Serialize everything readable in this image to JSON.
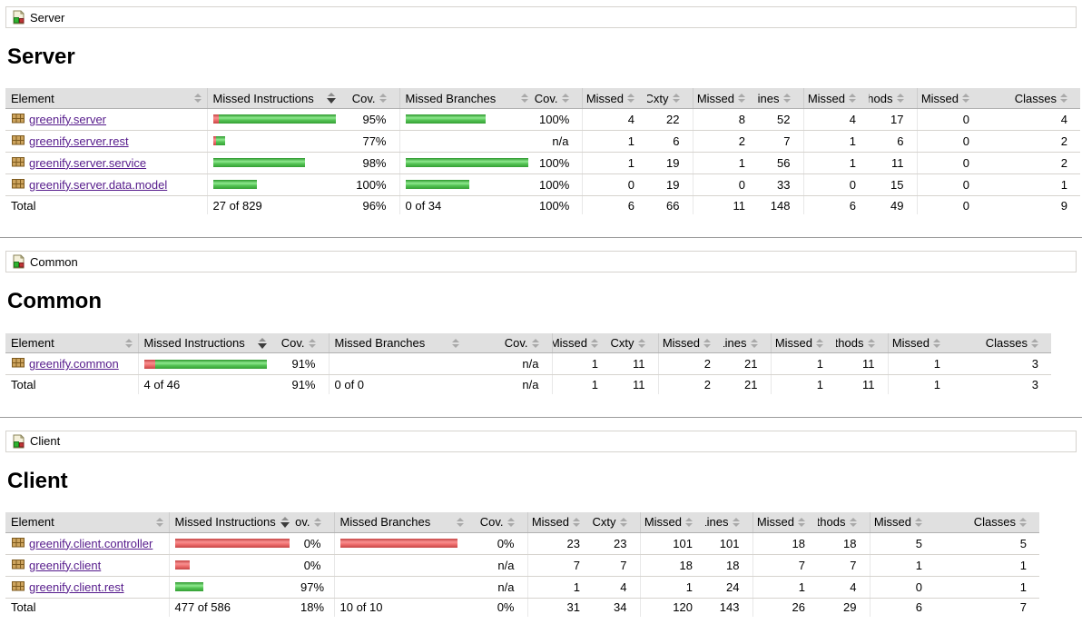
{
  "report": {
    "tool": "coverage-report",
    "columns": [
      "Element",
      "Missed Instructions",
      "Cov.",
      "Missed Branches",
      "Cov.",
      "Missed",
      "Cxty",
      "Missed",
      "Lines",
      "Missed",
      "Methods",
      "Missed",
      "Classes"
    ],
    "sort": {
      "column": "Missed Instructions",
      "direction": "desc"
    },
    "colors": {
      "covered_green": "#56c456",
      "missed_red": "#ef6f6f",
      "header_bg": "#e0e0e0",
      "row_border": "#d6d3ce",
      "link_purple": "#551a8b"
    },
    "icons": {
      "breadcrumb": "report-icon",
      "row": "package-icon",
      "header": "sort-icon"
    }
  },
  "sections": [
    {
      "breadcrumb": "Server",
      "title": "Server",
      "rows": [
        {
          "name": "greenify.server",
          "instr_bar": {
            "red": 7,
            "green": 132
          },
          "instr_cov": "95%",
          "branch_bar": {
            "red": 0,
            "green": 88
          },
          "branch_cov": "100%",
          "nums": [
            "4",
            "22",
            "8",
            "52",
            "4",
            "17",
            "0",
            "4"
          ]
        },
        {
          "name": "greenify.server.rest",
          "instr_bar": {
            "red": 3,
            "green": 10
          },
          "instr_cov": "77%",
          "branch_bar": {
            "red": 0,
            "green": 0
          },
          "branch_cov": "n/a",
          "nums": [
            "1",
            "6",
            "2",
            "7",
            "1",
            "6",
            "0",
            "2"
          ]
        },
        {
          "name": "greenify.server.service",
          "instr_bar": {
            "red": 0,
            "green": 101
          },
          "instr_cov": "98%",
          "branch_bar": {
            "red": 0,
            "green": 137
          },
          "branch_cov": "100%",
          "nums": [
            "1",
            "19",
            "1",
            "56",
            "1",
            "11",
            "0",
            "2"
          ]
        },
        {
          "name": "greenify.server.data.model",
          "instr_bar": {
            "red": 0,
            "green": 48
          },
          "instr_cov": "100%",
          "branch_bar": {
            "red": 0,
            "green": 70
          },
          "branch_cov": "100%",
          "nums": [
            "0",
            "19",
            "0",
            "33",
            "0",
            "15",
            "0",
            "1"
          ]
        }
      ],
      "total": {
        "label": "Total",
        "instr": "27 of 829",
        "instr_cov": "96%",
        "branch": "0 of 34",
        "branch_cov": "100%",
        "nums": [
          "6",
          "66",
          "11",
          "148",
          "6",
          "49",
          "0",
          "9"
        ]
      }
    },
    {
      "breadcrumb": "Common",
      "title": "Common",
      "rows": [
        {
          "name": "greenify.common",
          "instr_bar": {
            "red": 12,
            "green": 123
          },
          "instr_cov": "91%",
          "branch_bar": {
            "red": 0,
            "green": 0
          },
          "branch_cov": "n/a",
          "nums": [
            "1",
            "11",
            "2",
            "21",
            "1",
            "11",
            "1",
            "3"
          ]
        }
      ],
      "total": {
        "label": "Total",
        "instr": "4 of 46",
        "instr_cov": "91%",
        "branch": "0 of 0",
        "branch_cov": "n/a",
        "nums": [
          "1",
          "11",
          "2",
          "21",
          "1",
          "11",
          "1",
          "3"
        ]
      }
    },
    {
      "breadcrumb": "Client",
      "title": "Client",
      "rows": [
        {
          "name": "greenify.client.controller",
          "instr_bar": {
            "red": 127,
            "green": 0
          },
          "instr_cov": "0%",
          "branch_bar": {
            "red": 129,
            "green": 0
          },
          "branch_cov": "0%",
          "nums": [
            "23",
            "23",
            "101",
            "101",
            "18",
            "18",
            "5",
            "5"
          ]
        },
        {
          "name": "greenify.client",
          "instr_bar": {
            "red": 16,
            "green": 0
          },
          "instr_cov": "0%",
          "branch_bar": {
            "red": 0,
            "green": 0
          },
          "branch_cov": "n/a",
          "nums": [
            "7",
            "7",
            "18",
            "18",
            "7",
            "7",
            "1",
            "1"
          ]
        },
        {
          "name": "greenify.client.rest",
          "instr_bar": {
            "red": 0,
            "green": 31
          },
          "instr_cov": "97%",
          "branch_bar": {
            "red": 0,
            "green": 0
          },
          "branch_cov": "n/a",
          "nums": [
            "1",
            "4",
            "1",
            "24",
            "1",
            "4",
            "0",
            "1"
          ]
        }
      ],
      "total": {
        "label": "Total",
        "instr": "477 of 586",
        "instr_cov": "18%",
        "branch": "10 of 10",
        "branch_cov": "0%",
        "nums": [
          "31",
          "34",
          "120",
          "143",
          "26",
          "29",
          "6",
          "7"
        ]
      }
    }
  ]
}
